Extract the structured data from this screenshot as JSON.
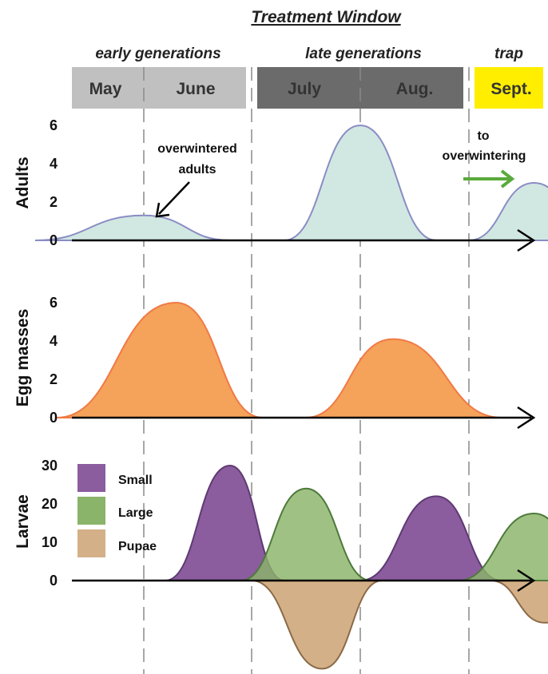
{
  "title": "Treatment Window",
  "phases": [
    {
      "label": "early generations"
    },
    {
      "label": "late generations"
    },
    {
      "label": "trap"
    }
  ],
  "months": [
    {
      "label": "May"
    },
    {
      "label": "June"
    },
    {
      "label": "July"
    },
    {
      "label": "Aug."
    },
    {
      "label": "Sept."
    }
  ],
  "colors": {
    "early_bar": "#c0c0c0",
    "late_bar": "#6b6b6b",
    "trap_bar": "#ffee00",
    "adults": "#d1e8e2",
    "adults_line": "#8a8dc4",
    "eggs": "#f5a25a",
    "eggs_line": "#f07a45",
    "small": "#8b5c9e",
    "large": "#8ab469",
    "pupae": "#d4b088",
    "overlap": "#6f98ac",
    "arrow_green": "#5aaa3c"
  },
  "annotations": {
    "overwintered": [
      "overwintered",
      "adults"
    ],
    "to_overwintering": [
      "to",
      "overwintering"
    ]
  },
  "chart_data": [
    {
      "type": "area",
      "ylabel": "Adults",
      "ylim": [
        0,
        6
      ],
      "yticks": [
        "0",
        "2",
        "4",
        "6"
      ],
      "x_unit": "month",
      "series": [
        {
          "values": [
            [
              1.0,
              0.0
            ],
            [
              2.0,
              1.3
            ],
            [
              2.8,
              0.0
            ],
            [
              3.3,
              0.0
            ],
            [
              4.0,
              6.0
            ],
            [
              4.7,
              0.0
            ],
            [
              5.0,
              0.0
            ],
            [
              5.6,
              3.0
            ],
            [
              6.2,
              0.0
            ]
          ]
        }
      ]
    },
    {
      "type": "area",
      "ylabel": "Egg masses",
      "ylim": [
        0,
        6
      ],
      "yticks": [
        "0",
        "2",
        "4",
        "6"
      ],
      "x_unit": "month",
      "series": [
        {
          "values": [
            [
              1.2,
              0.0
            ],
            [
              2.3,
              6.0
            ],
            [
              3.1,
              0.0
            ],
            [
              3.5,
              0.0
            ],
            [
              4.3,
              4.1
            ],
            [
              5.3,
              0.0
            ]
          ]
        }
      ]
    },
    {
      "type": "area",
      "ylabel": "Larvae",
      "ylim": [
        0,
        30
      ],
      "yticks": [
        "0",
        "10",
        "20",
        "30"
      ],
      "x_unit": "month",
      "series": [
        {
          "name": "Small",
          "values": [
            [
              2.2,
              0.0
            ],
            [
              2.8,
              30.0
            ],
            [
              3.3,
              0.0
            ],
            [
              4.0,
              0.0
            ],
            [
              4.7,
              22.0
            ],
            [
              5.3,
              0.0
            ]
          ]
        },
        {
          "name": "Large",
          "values": [
            [
              2.9,
              0.0
            ],
            [
              3.5,
              24.0
            ],
            [
              4.1,
              0.0
            ],
            [
              4.9,
              0.0
            ],
            [
              5.6,
              17.5
            ],
            [
              6.2,
              0.0
            ]
          ]
        },
        {
          "name": "Pupae",
          "values": [
            [
              3.0,
              0.0
            ],
            [
              3.65,
              -23.0
            ],
            [
              4.2,
              0.0
            ],
            [
              5.2,
              0.0
            ],
            [
              5.7,
              -11.0
            ],
            [
              6.2,
              0.0
            ]
          ]
        }
      ]
    }
  ]
}
